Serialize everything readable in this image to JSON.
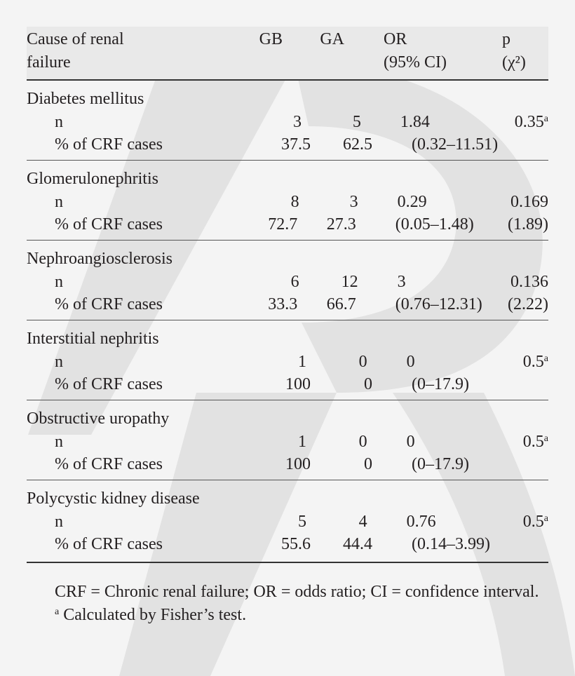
{
  "header": {
    "cause": [
      "Cause of renal",
      "failure"
    ],
    "gb": "GB",
    "ga": "GA",
    "or": [
      "OR",
      "(95% CI)"
    ],
    "p": [
      "p",
      "(χ²)"
    ]
  },
  "n_label": "n",
  "pct_label": "% of CRF cases",
  "groups": [
    {
      "title": "Diabetes mellitus",
      "n_gb": "3",
      "n_ga": "5",
      "or": "1.84",
      "p": "0.35",
      "p_sup": "a",
      "pct_gb": "37.5",
      "pct_ga": "62.5",
      "ci": "(0.32–11.51)",
      "chi": ""
    },
    {
      "title": "Glomerulonephritis",
      "n_gb": "8",
      "n_ga": "3",
      "or": "0.29",
      "p": "0.169",
      "p_sup": "",
      "pct_gb": "72.7",
      "pct_ga": "27.3",
      "ci": "(0.05–1.48)",
      "chi": "(1.89)"
    },
    {
      "title": "Nephroangiosclerosis",
      "n_gb": "6",
      "n_ga": "12",
      "or": "3",
      "p": "0.136",
      "p_sup": "",
      "pct_gb": "33.3",
      "pct_ga": "66.7",
      "ci": "(0.76–12.31)",
      "chi": "(2.22)"
    },
    {
      "title": "Interstitial nephritis",
      "n_gb": "1",
      "n_ga": "0",
      "or": "0",
      "p": "0.5",
      "p_sup": "a",
      "pct_gb": "100",
      "pct_ga": "0",
      "ci": "(0–17.9)",
      "chi": ""
    },
    {
      "title": "Obstructive uropathy",
      "n_gb": "1",
      "n_ga": "0",
      "or": "0",
      "p": "0.5",
      "p_sup": "a",
      "pct_gb": "100",
      "pct_ga": "0",
      "ci": "(0–17.9)",
      "chi": ""
    },
    {
      "title": "Polycystic kidney disease",
      "n_gb": "5",
      "n_ga": "4",
      "or": "0.76",
      "p": "0.5",
      "p_sup": "a",
      "pct_gb": "55.6",
      "pct_ga": "44.4",
      "ci": "(0.14–3.99)",
      "chi": ""
    }
  ],
  "footnote": {
    "abbrev": "CRF = Chronic renal failure; OR = odds ratio; CI = confidence interval.",
    "fisher_mark": "a",
    "fisher": "Calculated by Fisher’s test."
  },
  "colors": {
    "background": "#f4f4f4",
    "watermark": "#e2e2e2",
    "text": "#231f20"
  }
}
